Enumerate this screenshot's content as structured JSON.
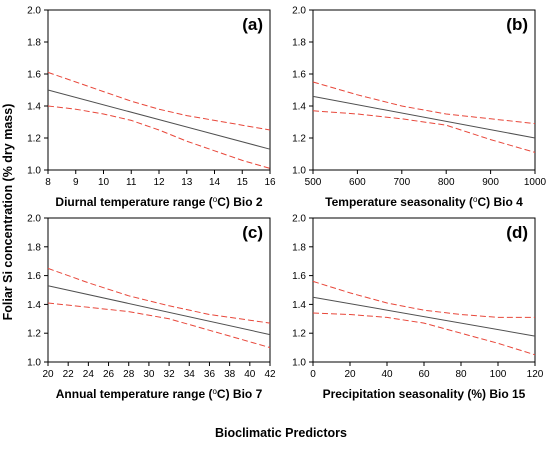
{
  "figure": {
    "ylabel": "Foliar Si concentration (% dry mass)",
    "xlabel": "Bioclimatic Predictors"
  },
  "colors": {
    "fit": "#505050",
    "ci": "#e8473a",
    "axis": "#000000"
  },
  "chart_data": [
    {
      "type": "line",
      "panel_label": "(a)",
      "xlabel_pre": "Diurnal temperature range (",
      "xlabel_sup": "o",
      "xlabel_post": "C) Bio 2",
      "xlim": [
        8,
        16
      ],
      "ylim": [
        1.0,
        2.0
      ],
      "xticks": [
        "8",
        "9",
        "10",
        "11",
        "12",
        "13",
        "14",
        "15",
        "16"
      ],
      "yticks": [
        "1.0",
        "1.2",
        "1.4",
        "1.6",
        "1.8",
        "2.0"
      ],
      "series": [
        {
          "role": "fit",
          "x": [
            8,
            16
          ],
          "y": [
            1.5,
            1.13
          ]
        },
        {
          "role": "ci_upper",
          "x": [
            8,
            9,
            10,
            11,
            12,
            13,
            14,
            15,
            16
          ],
          "y": [
            1.61,
            1.55,
            1.49,
            1.43,
            1.38,
            1.34,
            1.31,
            1.28,
            1.25
          ]
        },
        {
          "role": "ci_lower",
          "x": [
            8,
            9,
            10,
            11,
            12,
            13,
            14,
            15,
            16
          ],
          "y": [
            1.4,
            1.38,
            1.35,
            1.31,
            1.25,
            1.18,
            1.12,
            1.06,
            1.01
          ]
        }
      ]
    },
    {
      "type": "line",
      "panel_label": "(b)",
      "xlabel_pre": "Temperature seasonality (",
      "xlabel_sup": "o",
      "xlabel_post": "C) Bio 4",
      "xlim": [
        500,
        1000
      ],
      "ylim": [
        1.0,
        2.0
      ],
      "xticks": [
        "500",
        "600",
        "700",
        "800",
        "900",
        "1000"
      ],
      "yticks": [
        "1.0",
        "1.2",
        "1.4",
        "1.6",
        "1.8",
        "2.0"
      ],
      "series": [
        {
          "role": "fit",
          "x": [
            500,
            1000
          ],
          "y": [
            1.46,
            1.2
          ]
        },
        {
          "role": "ci_upper",
          "x": [
            500,
            600,
            700,
            800,
            900,
            1000
          ],
          "y": [
            1.55,
            1.47,
            1.4,
            1.35,
            1.32,
            1.29
          ]
        },
        {
          "role": "ci_lower",
          "x": [
            500,
            600,
            700,
            800,
            900,
            1000
          ],
          "y": [
            1.37,
            1.35,
            1.32,
            1.28,
            1.19,
            1.11
          ]
        }
      ]
    },
    {
      "type": "line",
      "panel_label": "(c)",
      "xlabel_pre": "Annual temperature range (",
      "xlabel_sup": "o",
      "xlabel_post": "C) Bio 7",
      "xlim": [
        20,
        42
      ],
      "ylim": [
        1.0,
        2.0
      ],
      "xticks": [
        "20",
        "22",
        "24",
        "26",
        "28",
        "30",
        "32",
        "34",
        "36",
        "38",
        "40",
        "42"
      ],
      "yticks": [
        "1.0",
        "1.2",
        "1.4",
        "1.6",
        "1.8",
        "2.0"
      ],
      "series": [
        {
          "role": "fit",
          "x": [
            20,
            42
          ],
          "y": [
            1.53,
            1.19
          ]
        },
        {
          "role": "ci_upper",
          "x": [
            20,
            24,
            28,
            32,
            36,
            40,
            42
          ],
          "y": [
            1.65,
            1.55,
            1.46,
            1.39,
            1.33,
            1.29,
            1.27
          ]
        },
        {
          "role": "ci_lower",
          "x": [
            20,
            24,
            28,
            32,
            36,
            40,
            42
          ],
          "y": [
            1.41,
            1.38,
            1.35,
            1.3,
            1.22,
            1.14,
            1.1
          ]
        }
      ]
    },
    {
      "type": "line",
      "panel_label": "(d)",
      "xlabel_pre": "Precipitation seasonality (%) Bio 15",
      "xlabel_sup": "",
      "xlabel_post": "",
      "xlim": [
        0,
        120
      ],
      "ylim": [
        1.0,
        2.0
      ],
      "xticks": [
        "0",
        "20",
        "40",
        "60",
        "80",
        "100",
        "120"
      ],
      "yticks": [
        "1.0",
        "1.2",
        "1.4",
        "1.6",
        "1.8",
        "2.0"
      ],
      "series": [
        {
          "role": "fit",
          "x": [
            0,
            120
          ],
          "y": [
            1.45,
            1.18
          ]
        },
        {
          "role": "ci_upper",
          "x": [
            0,
            20,
            40,
            60,
            80,
            100,
            120
          ],
          "y": [
            1.56,
            1.48,
            1.41,
            1.36,
            1.33,
            1.31,
            1.31
          ]
        },
        {
          "role": "ci_lower",
          "x": [
            0,
            20,
            40,
            60,
            80,
            100,
            120
          ],
          "y": [
            1.34,
            1.33,
            1.31,
            1.27,
            1.2,
            1.13,
            1.05
          ]
        }
      ]
    }
  ]
}
